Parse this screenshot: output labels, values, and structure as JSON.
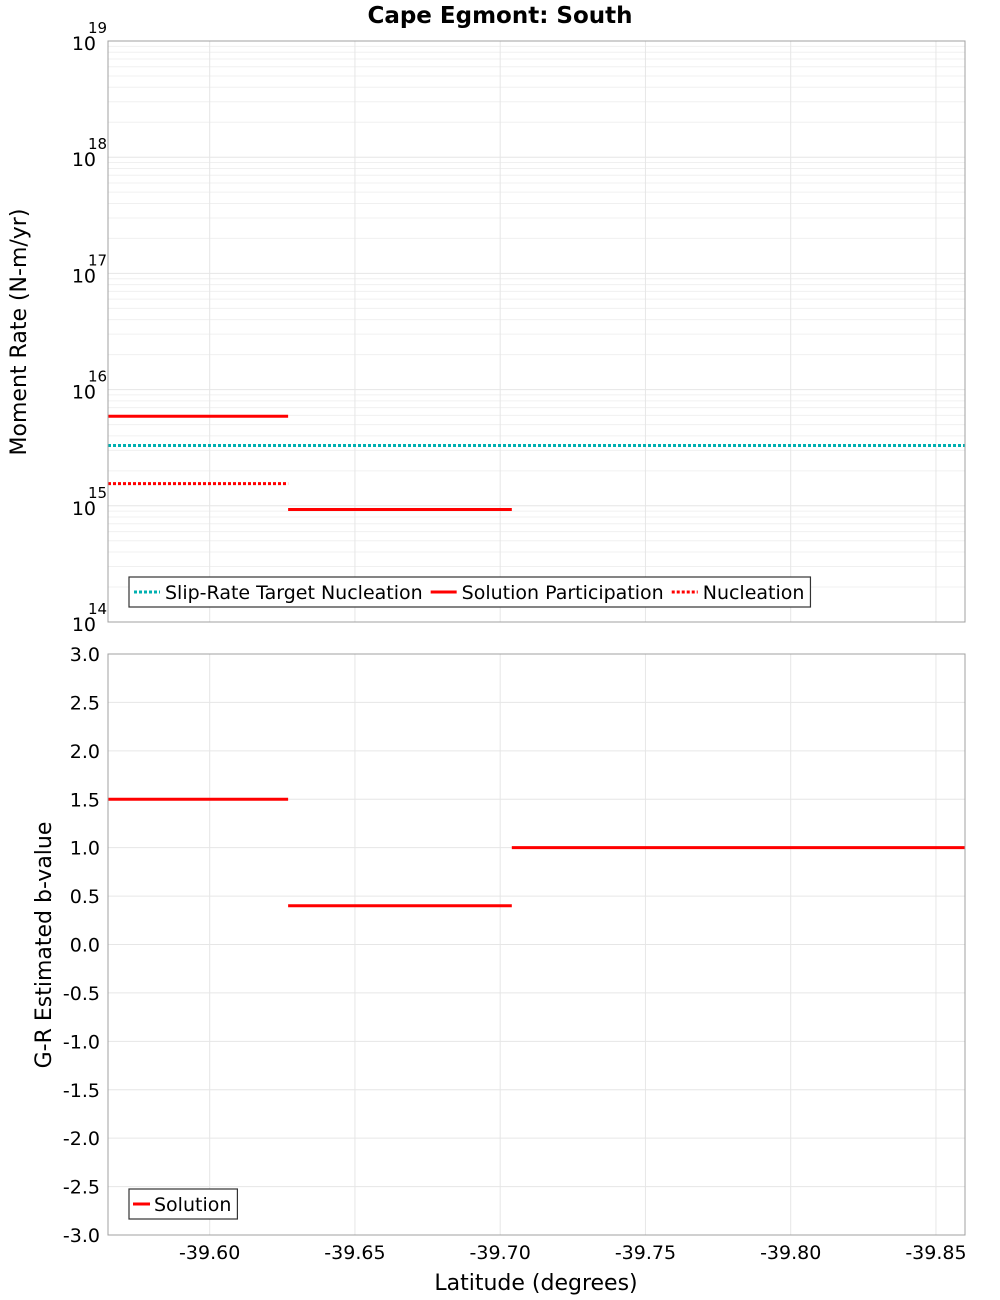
{
  "title": "Cape Egmont: South",
  "x_axis": {
    "label": "Latitude (degrees)",
    "ticks": [
      -39.6,
      -39.65,
      -39.7,
      -39.75,
      -39.8,
      -39.85
    ],
    "tick_labels": [
      "-39.60",
      "-39.65",
      "-39.70",
      "-39.75",
      "-39.80",
      "-39.85"
    ],
    "range": [
      -39.565,
      -39.86
    ],
    "reversed": true
  },
  "chart_data": [
    {
      "type": "line",
      "name": "moment-rate",
      "ylabel": "Moment Rate (N-m/yr)",
      "yscale": "log",
      "ylim": [
        100000000000000.0,
        1e+19
      ],
      "y_tick_labels": [
        {
          "base": "10",
          "exp": "14"
        },
        {
          "base": "10",
          "exp": "15"
        },
        {
          "base": "10",
          "exp": "16"
        },
        {
          "base": "10",
          "exp": "17"
        },
        {
          "base": "10",
          "exp": "18"
        },
        {
          "base": "10",
          "exp": "19"
        }
      ],
      "grid": true,
      "legend_position": "bottom-left",
      "series": [
        {
          "name": "Slip-Rate Target Nucleation",
          "color": "#00b0b0",
          "style": "dotted",
          "in_legend": true,
          "segments": [
            {
              "x": [
                -39.565,
                -39.86
              ],
              "y": 3300000000000000.0
            }
          ]
        },
        {
          "name": "Solution Participation",
          "color": "#ff0000",
          "style": "solid",
          "in_legend": true,
          "segments": [
            {
              "x": [
                -39.565,
                -39.627
              ],
              "y": 5900000000000000.0
            },
            {
              "x": [
                -39.627,
                -39.704
              ],
              "y": 930000000000000.0
            }
          ]
        },
        {
          "name": "Nucleation",
          "color": "#ff0000",
          "style": "dotted",
          "in_legend": true,
          "segments": [
            {
              "x": [
                -39.565,
                -39.627
              ],
              "y": 1550000000000000.0
            }
          ]
        },
        {
          "name": "",
          "color": "#ffb0b0",
          "style": "dotted",
          "in_legend": false,
          "segments": [
            {
              "x": [
                -39.627,
                -39.704
              ],
              "y": 200000000000000.0
            }
          ]
        }
      ]
    },
    {
      "type": "line",
      "name": "b-value",
      "ylabel": "G-R Estimated b-value",
      "ylim": [
        -3.0,
        3.0
      ],
      "y_ticks": [
        -3.0,
        -2.5,
        -2.0,
        -1.5,
        -1.0,
        -0.5,
        0.0,
        0.5,
        1.0,
        1.5,
        2.0,
        2.5,
        3.0
      ],
      "y_tick_labels": [
        "-3.0",
        "-2.5",
        "-2.0",
        "-1.5",
        "-1.0",
        "-0.5",
        "0.0",
        "0.5",
        "1.0",
        "1.5",
        "2.0",
        "2.5",
        "3.0"
      ],
      "grid": true,
      "legend_position": "bottom-left",
      "series": [
        {
          "name": "Solution",
          "color": "#ff0000",
          "style": "solid",
          "in_legend": true,
          "segments": [
            {
              "x": [
                -39.565,
                -39.627
              ],
              "y": 1.5
            },
            {
              "x": [
                -39.627,
                -39.704
              ],
              "y": 0.4
            },
            {
              "x": [
                -39.704,
                -39.86
              ],
              "y": 1.0
            }
          ]
        }
      ]
    }
  ]
}
